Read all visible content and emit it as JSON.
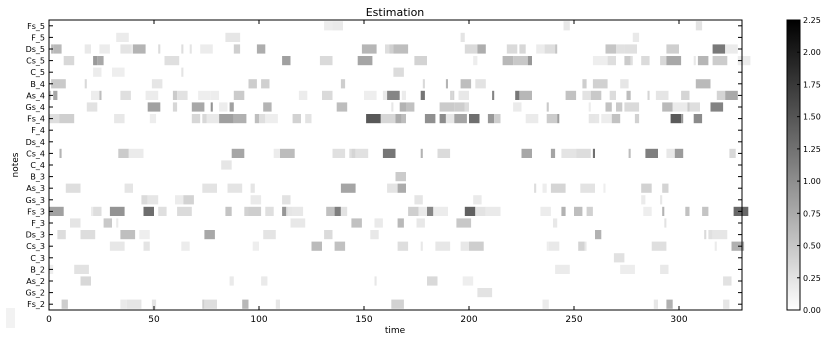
{
  "chart_data": {
    "type": "heatmap",
    "title": "Estimation",
    "xlabel": "time",
    "ylabel": "notes",
    "xlim": [
      0,
      330
    ],
    "xticks": [
      0,
      50,
      100,
      150,
      200,
      250,
      300
    ],
    "notes": [
      "Fs_5",
      "F_5",
      "Ds_5",
      "Cs_5",
      "C_5",
      "B_4",
      "As_4",
      "Gs_4",
      "Fs_4",
      "F_4",
      "Ds_4",
      "Cs_4",
      "C_4",
      "B_3",
      "As_3",
      "Gs_3",
      "Fs_3",
      "F_3",
      "Ds_3",
      "Cs_3",
      "C_3",
      "B_2",
      "As_2",
      "Gs_2",
      "Fs_2"
    ],
    "colorbar": {
      "range": [
        0.0,
        2.25
      ],
      "ticks": [
        "0.00",
        "0.25",
        "0.50",
        "0.75",
        "1.00",
        "1.25",
        "1.50",
        "1.75",
        "2.00",
        "2.25"
      ],
      "colormap": "gray_r"
    },
    "note_activity": {
      "Fs_5": 0.06,
      "F_5": 0.08,
      "Ds_5": 0.3,
      "Cs_5": 0.28,
      "C_5": 0.04,
      "B_4": 0.22,
      "As_4": 0.35,
      "Gs_4": 0.3,
      "Fs_4": 0.45,
      "F_4": 0.0,
      "Ds_4": 0.0,
      "Cs_4": 0.3,
      "C_4": 0.03,
      "B_3": 0.05,
      "As_3": 0.22,
      "Gs_3": 0.1,
      "Fs_3": 0.4,
      "F_3": 0.12,
      "Ds_3": 0.15,
      "Cs_3": 0.22,
      "C_3": 0.03,
      "B_2": 0.08,
      "As_2": 0.04,
      "Gs_2": 0.02,
      "Fs_2": 0.12
    }
  }
}
